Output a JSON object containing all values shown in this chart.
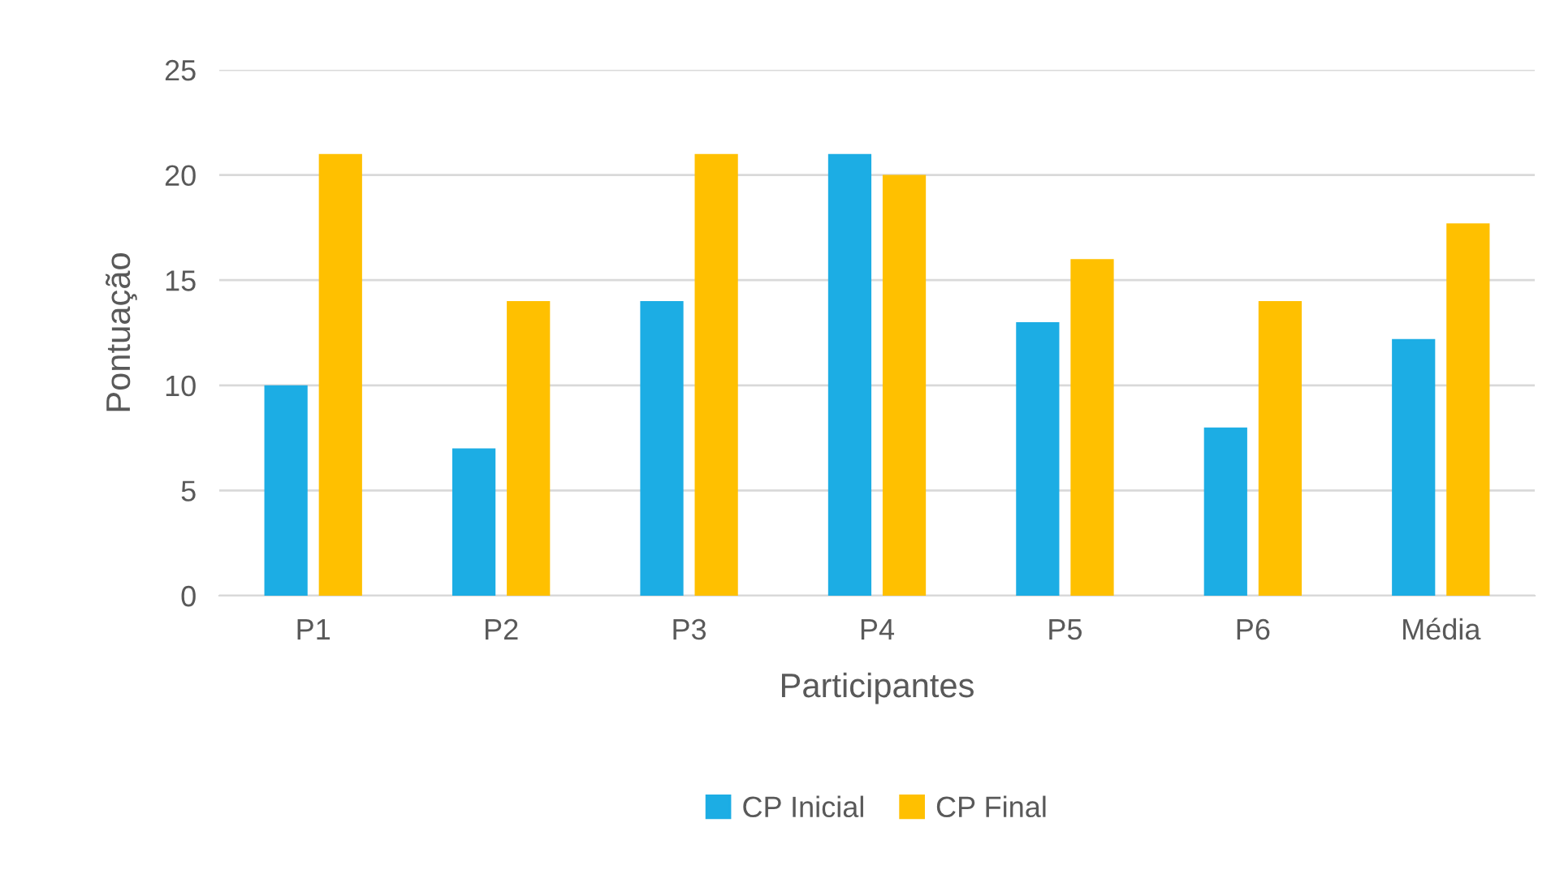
{
  "chart_data": {
    "type": "bar",
    "xlabel": "Participantes",
    "ylabel": "Pontuação",
    "categories": [
      "P1",
      "P2",
      "P3",
      "P4",
      "P5",
      "P6",
      "Média"
    ],
    "series": [
      {
        "name": "CP Inicial",
        "color": "#1cade4",
        "values": [
          10,
          7,
          14,
          21,
          13,
          8,
          12.2
        ]
      },
      {
        "name": "CP Final",
        "color": "#ffc000",
        "values": [
          21,
          14,
          21,
          20,
          16,
          14,
          17.7
        ]
      }
    ],
    "ylim": [
      0,
      25
    ],
    "yticks": [
      0,
      5,
      10,
      15,
      20,
      25
    ],
    "grid": "y",
    "legend": "bottom"
  }
}
